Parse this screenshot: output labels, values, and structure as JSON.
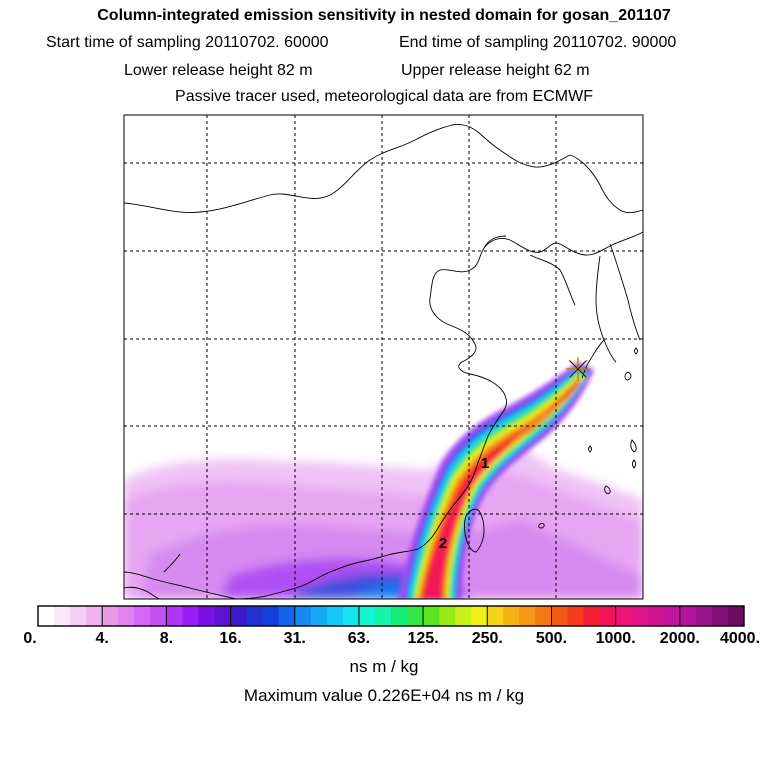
{
  "header": {
    "title": "Column-integrated emission sensitivity in nested domain for gosan_201107",
    "start_time": "Start time of sampling 20110702. 60000",
    "end_time": "End time of sampling 20110702. 90000",
    "lower_release": "Lower release height   82 m",
    "upper_release": "Upper release height   62 m",
    "tracer_note": "Passive tracer used, meteorological data are from ECMWF"
  },
  "map": {
    "labels": [
      "1",
      "2"
    ],
    "release_site_marker": "star-icon"
  },
  "colorbar": {
    "tick_labels": [
      "0.",
      "4.",
      "8.",
      "16.",
      "31.",
      "63.",
      "125.",
      "250.",
      "500.",
      "1000.",
      "2000.",
      "4000."
    ],
    "colors": [
      "#ffffff",
      "#fbe6fb",
      "#f5cdf5",
      "#efb3ef",
      "#e89ae8",
      "#e281f0",
      "#d468f5",
      "#c34ff5",
      "#b236f5",
      "#9a1ef5",
      "#7a10e6",
      "#5a14d2",
      "#3c1acc",
      "#2430cf",
      "#1440e0",
      "#1464f0",
      "#1488f5",
      "#14a8f5",
      "#14c8f5",
      "#14e6f0",
      "#14f5d2",
      "#14f5a8",
      "#14eb78",
      "#30e646",
      "#5ae61e",
      "#96eb14",
      "#c8f014",
      "#f0f014",
      "#f5d214",
      "#f5b414",
      "#f59614",
      "#f57814",
      "#f55a14",
      "#f53c1e",
      "#f51e32",
      "#f5145a",
      "#f01478",
      "#e1148c",
      "#d21496",
      "#c314a0",
      "#b414a0",
      "#9a148c",
      "#820f78",
      "#6e0a64"
    ],
    "unit": "ns m / kg"
  },
  "footer": {
    "max_value": "Maximum value  0.226E+04 ns m / kg"
  }
}
